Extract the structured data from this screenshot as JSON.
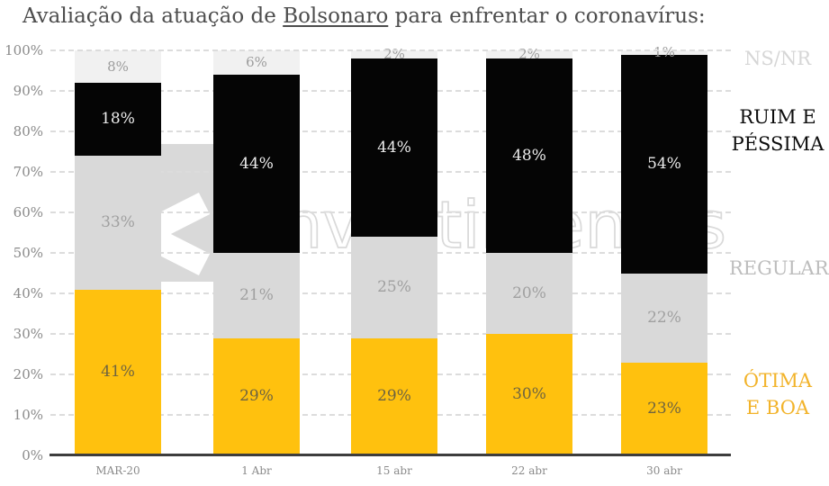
{
  "title": {
    "prefix": "Avaliação da atuação de ",
    "underlined": "Bolsonaro",
    "suffix": " para enfrentar o coronavírus:"
  },
  "watermark": {
    "logo_letter": "x",
    "text": "investimentos"
  },
  "chart_data": {
    "type": "bar",
    "stacked": true,
    "title": "Avaliação da atuação de Bolsonaro para enfrentar o coronavírus:",
    "categories": [
      "MAR-20",
      "1 Abr",
      "15 abr",
      "22 abr",
      "30 abr"
    ],
    "series": [
      {
        "name": "ÓTIMA E BOA",
        "color": "#FFC10E",
        "label_color": "#6F6440",
        "values": [
          41,
          29,
          29,
          30,
          23
        ]
      },
      {
        "name": "REGULAR",
        "color": "#D9D9D9",
        "label_color": "#A0A0A0",
        "values": [
          33,
          21,
          25,
          20,
          22
        ]
      },
      {
        "name": "RUIM E PÉSSIMA",
        "color": "#050505",
        "label_color": "#ECECEC",
        "values": [
          18,
          44,
          44,
          48,
          54
        ]
      },
      {
        "name": "NS/NR",
        "color": "#F1F1F1",
        "label_color": "#9C9C9C",
        "values": [
          8,
          6,
          2,
          2,
          1
        ]
      }
    ],
    "data_label_suffix": "%",
    "y_ticks": [
      "0%",
      "10%",
      "20%",
      "30%",
      "40%",
      "50%",
      "60%",
      "70%",
      "80%",
      "90%",
      "100%"
    ],
    "ylim": [
      0,
      100
    ],
    "grid": "horizontal-dashed",
    "legend_position": "right",
    "legend": [
      {
        "lines": [
          "NS/NR"
        ],
        "color": "#D6D6D6"
      },
      {
        "lines": [
          "RUIM E",
          "PÉSSIMA"
        ],
        "color": "#0D0D0D"
      },
      {
        "lines": [
          "REGULAR"
        ],
        "color": "#BDBDBD"
      },
      {
        "lines": [
          "ÓTIMA",
          "E BOA"
        ],
        "color": "#F2B32A"
      }
    ]
  },
  "colors": {
    "axis": "#3D3D3D",
    "gridline": "#DCDCDC",
    "tick_label": "#8A8A8A",
    "title_text": "#4D4D4D",
    "watermark": "#D9D9D9"
  }
}
